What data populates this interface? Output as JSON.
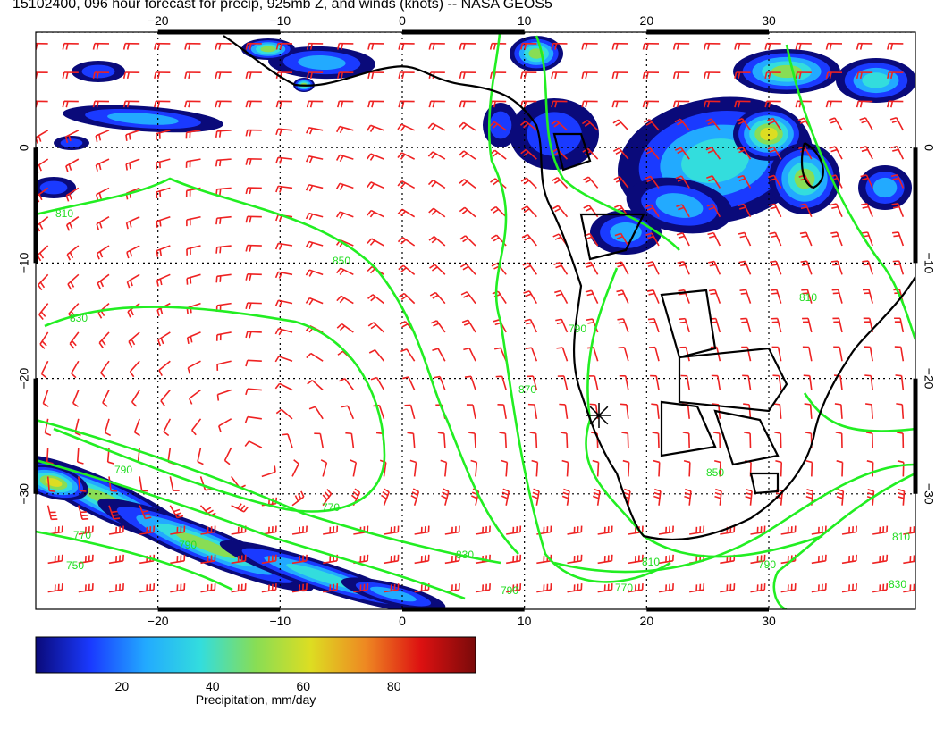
{
  "title": "15102400, 096 hour forecast for precip, 925mb Z, and winds (knots) -- NASA GEOS5",
  "map": {
    "lon_range": [
      -30,
      42
    ],
    "lat_range": [
      -40,
      10
    ],
    "lon_ticks": [
      "−20",
      "−10",
      "0",
      "10",
      "20",
      "30"
    ],
    "lat_ticks": [
      "0",
      "−10",
      "−20",
      "−30"
    ],
    "contour_color": "#22ee22",
    "coast_color": "#000000",
    "barb_color": "#ee2222",
    "contour_labels": [
      "810",
      "830",
      "850",
      "870",
      "790",
      "790",
      "770",
      "750",
      "770",
      "830",
      "810",
      "790",
      "770",
      "790",
      "810",
      "830",
      "810",
      "850",
      "790"
    ]
  },
  "colorbar": {
    "label": "Precipitation, mm/day",
    "ticks": [
      "20",
      "40",
      "60",
      "80"
    ],
    "colors": [
      "#0a0a7a",
      "#1a3aff",
      "#22aaff",
      "#33dddd",
      "#88dd55",
      "#dddd22",
      "#ee8822",
      "#dd1111",
      "#7a0a0a"
    ]
  }
}
